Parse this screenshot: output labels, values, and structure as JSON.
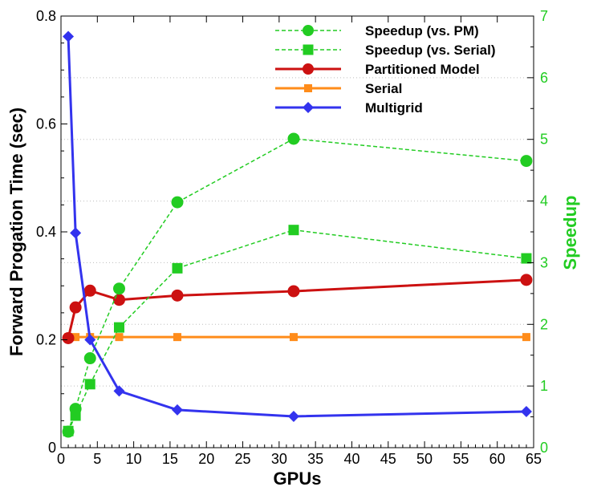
{
  "chart_data": {
    "type": "line",
    "title": "",
    "xlabel": "GPUs",
    "ylabel_left": "Forward Progation Time (sec)",
    "ylabel_right": "Speedup",
    "xlim": [
      0,
      65
    ],
    "ylim_left": [
      0,
      0.8
    ],
    "ylim_right": [
      0,
      7
    ],
    "x_ticks": [
      0,
      5,
      10,
      15,
      20,
      25,
      30,
      35,
      40,
      45,
      50,
      55,
      60,
      65
    ],
    "y_left_ticks": [
      0,
      0.2,
      0.4,
      0.6,
      0.8
    ],
    "y_left_tick_labels": [
      "0",
      "0.2",
      "0.4",
      "0.6",
      "0.8"
    ],
    "y_right_ticks": [
      0,
      1,
      2,
      3,
      4,
      5,
      6,
      7
    ],
    "grid": "horizontal dotted",
    "legend_position": "top-right",
    "series": [
      {
        "name": "Speedup (vs. PM)",
        "axis": "right",
        "color": "#22cc22",
        "style": "dashed",
        "marker": "circle",
        "x": [
          1,
          2,
          4,
          8,
          16,
          32,
          64
        ],
        "values": [
          0.26,
          0.63,
          1.45,
          2.58,
          3.98,
          5.01,
          4.65
        ]
      },
      {
        "name": "Speedup (vs. Serial)",
        "axis": "right",
        "color": "#22cc22",
        "style": "dashed",
        "marker": "square",
        "x": [
          1,
          2,
          4,
          8,
          16,
          32,
          64
        ],
        "values": [
          0.27,
          0.52,
          1.03,
          1.95,
          2.91,
          3.53,
          3.07
        ]
      },
      {
        "name": "Partitioned Model",
        "axis": "left",
        "color": "#cc1111",
        "style": "solid",
        "marker": "circle",
        "x": [
          1,
          2,
          4,
          8,
          16,
          32,
          64
        ],
        "values": [
          0.203,
          0.26,
          0.291,
          0.274,
          0.282,
          0.29,
          0.311
        ]
      },
      {
        "name": "Serial",
        "axis": "left",
        "color": "#ff8c1a",
        "style": "solid",
        "marker": "square",
        "x": [
          1,
          2,
          4,
          8,
          16,
          32,
          64
        ],
        "values": [
          0.205,
          0.205,
          0.205,
          0.205,
          0.205,
          0.205,
          0.205
        ]
      },
      {
        "name": "Multigrid",
        "axis": "left",
        "color": "#3333ee",
        "style": "solid",
        "marker": "diamond",
        "x": [
          1,
          2,
          4,
          8,
          16,
          32,
          64
        ],
        "values": [
          0.762,
          0.398,
          0.2,
          0.105,
          0.07,
          0.058,
          0.067
        ]
      }
    ]
  }
}
